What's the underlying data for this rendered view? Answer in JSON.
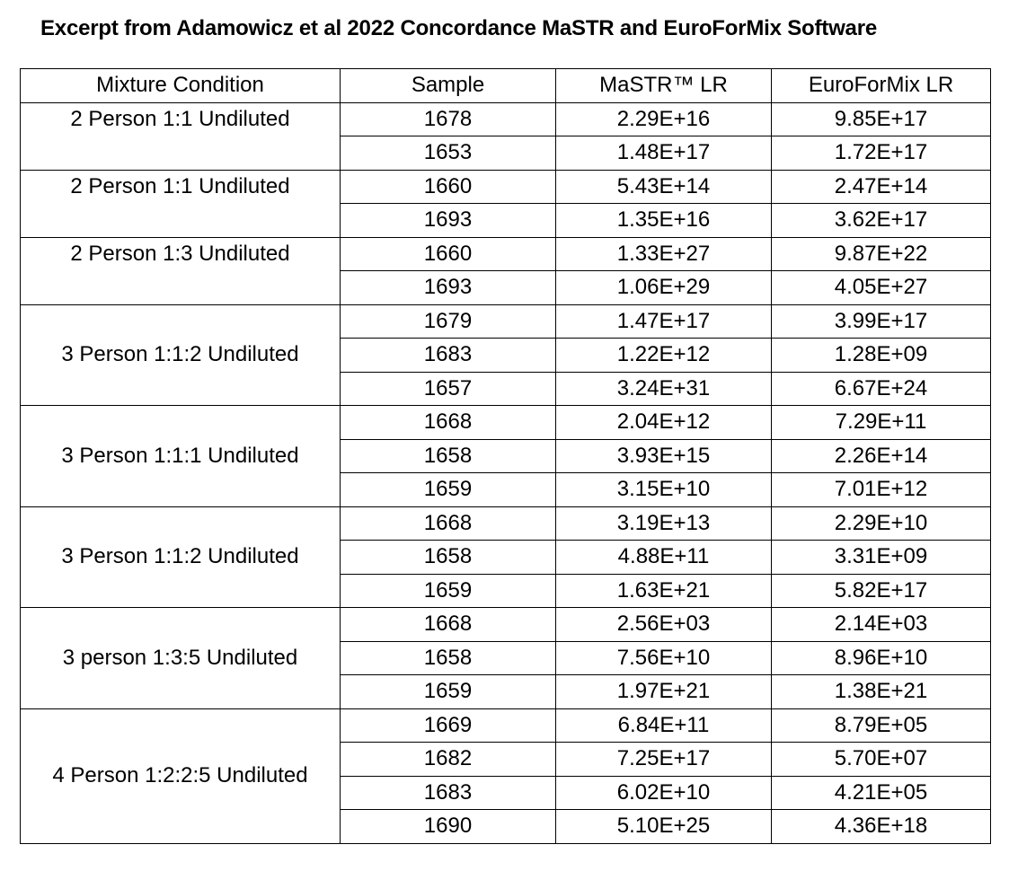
{
  "title": "Excerpt from Adamowicz et al 2022 Concordance MaSTR and EuroForMix Software",
  "table": {
    "headers": [
      "Mixture Condition",
      "Sample",
      "MaSTR™  LR",
      "EuroForMix LR"
    ],
    "groups": [
      {
        "condition": "2 Person 1:1 Undiluted",
        "rows": [
          [
            "1678",
            "2.29E+16",
            "9.85E+17"
          ],
          [
            "1653",
            "1.48E+17",
            "1.72E+17"
          ]
        ]
      },
      {
        "condition": "2 Person 1:1 Undiluted",
        "rows": [
          [
            "1660",
            "5.43E+14",
            "2.47E+14"
          ],
          [
            "1693",
            "1.35E+16",
            "3.62E+17"
          ]
        ]
      },
      {
        "condition": "2 Person 1:3 Undiluted",
        "rows": [
          [
            "1660",
            "1.33E+27",
            "9.87E+22"
          ],
          [
            "1693",
            "1.06E+29",
            "4.05E+27"
          ]
        ]
      },
      {
        "condition": "3 Person 1:1:2 Undiluted",
        "rows": [
          [
            "1679",
            "1.47E+17",
            "3.99E+17"
          ],
          [
            "1683",
            "1.22E+12",
            "1.28E+09"
          ],
          [
            "1657",
            "3.24E+31",
            "6.67E+24"
          ]
        ]
      },
      {
        "condition": "3 Person 1:1:1 Undiluted",
        "rows": [
          [
            "1668",
            "2.04E+12",
            "7.29E+11"
          ],
          [
            "1658",
            "3.93E+15",
            "2.26E+14"
          ],
          [
            "1659",
            "3.15E+10",
            "7.01E+12"
          ]
        ]
      },
      {
        "condition": "3 Person 1:1:2 Undiluted",
        "rows": [
          [
            "1668",
            "3.19E+13",
            "2.29E+10"
          ],
          [
            "1658",
            "4.88E+11",
            "3.31E+09"
          ],
          [
            "1659",
            "1.63E+21",
            "5.82E+17"
          ]
        ]
      },
      {
        "condition": "3 person 1:3:5 Undiluted",
        "rows": [
          [
            "1668",
            "2.56E+03",
            "2.14E+03"
          ],
          [
            "1658",
            "7.56E+10",
            "8.96E+10"
          ],
          [
            "1659",
            "1.97E+21",
            "1.38E+21"
          ]
        ]
      },
      {
        "condition": "4 Person 1:2:2:5 Undiluted",
        "rows": [
          [
            "1669",
            "6.84E+11",
            "8.79E+05"
          ],
          [
            "1682",
            "7.25E+17",
            "5.70E+07"
          ],
          [
            "1683",
            "6.02E+10",
            "4.21E+05"
          ],
          [
            "1690",
            "5.10E+25",
            "4.36E+18"
          ]
        ]
      }
    ]
  }
}
